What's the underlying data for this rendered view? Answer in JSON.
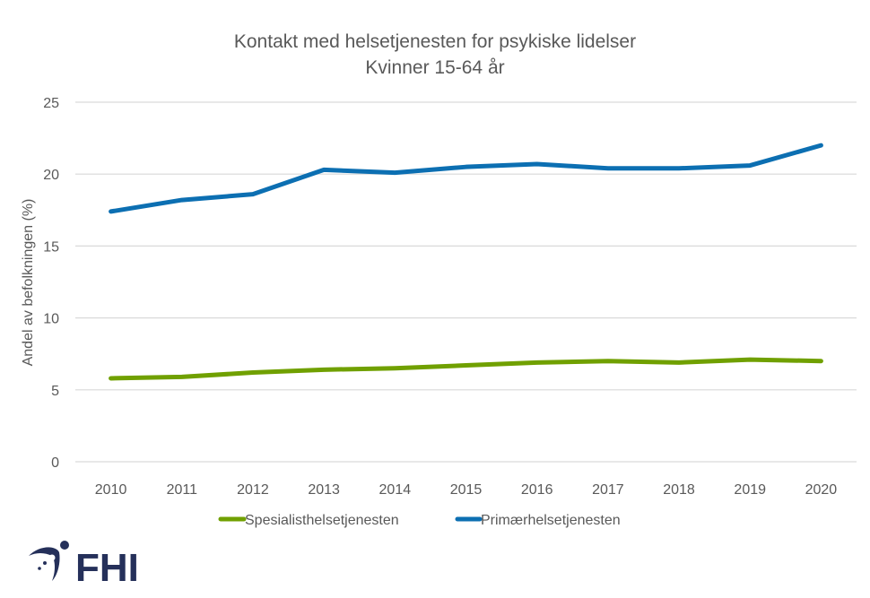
{
  "chart_data": {
    "type": "line",
    "title": "Kontakt med helsetjenesten for psykiske lidelser",
    "subtitle": "Kvinner 15-64 år",
    "xlabel": "",
    "ylabel": "Andel av befolkningen (%)",
    "ylim": [
      0,
      25
    ],
    "yticks": [
      "0",
      "5",
      "10",
      "15",
      "20",
      "25"
    ],
    "categories": [
      "2010",
      "2011",
      "2012",
      "2013",
      "2014",
      "2015",
      "2016",
      "2017",
      "2018",
      "2019",
      "2020"
    ],
    "grid": true,
    "legend_position": "bottom",
    "series": [
      {
        "name": "Spesialisthelsetjenesten",
        "color": "#70a000",
        "values": [
          5.8,
          5.9,
          6.2,
          6.4,
          6.5,
          6.7,
          6.9,
          7.0,
          6.9,
          7.1,
          7.0
        ]
      },
      {
        "name": "Primærhelsetjenesten",
        "color": "#0c6fb2",
        "values": [
          17.4,
          18.2,
          18.6,
          20.3,
          20.1,
          20.5,
          20.7,
          20.4,
          20.4,
          20.6,
          22.0
        ]
      }
    ]
  },
  "logo": {
    "text": "FHI",
    "color": "#25305a"
  }
}
